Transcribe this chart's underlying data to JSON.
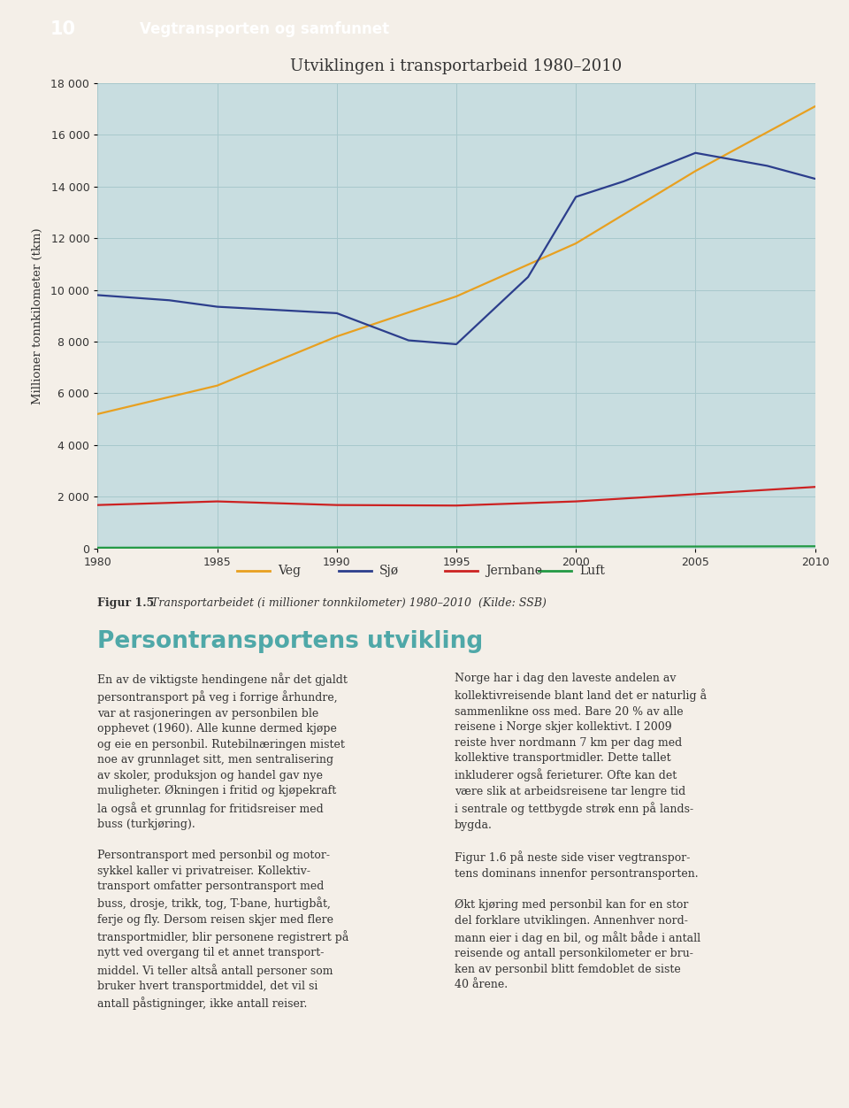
{
  "title": "Utviklingen i transportarbeid 1980–2010",
  "ylabel": "Millioner tonnkilometer (tkm)",
  "plot_bg_color": "#c8dde0",
  "page_bg_color": "#f4efe8",
  "ylim": [
    0,
    18000
  ],
  "yticks": [
    0,
    2000,
    4000,
    6000,
    8000,
    10000,
    12000,
    14000,
    16000,
    18000
  ],
  "xticks": [
    1980,
    1985,
    1990,
    1995,
    2000,
    2005,
    2010
  ],
  "header_bg": "#6fa8a0",
  "header_num_bg": "#5a8e87",
  "header_text": "Vegtransporten og samfunnet",
  "header_num": "10",
  "figcaption_bold": "Figur 1.5",
  "figcaption_italic": "  Transportarbeidet (i millioner tonnkilometer) 1980–2010  (Kilde: SSB)",
  "section_title": "Persontransportens utvikling",
  "section_title_color": "#4fa8a8",
  "lines": {
    "Veg": {
      "color": "#e8a020",
      "x": [
        1980,
        1985,
        1990,
        1995,
        2000,
        2005,
        2010
      ],
      "y": [
        5200,
        6300,
        8200,
        9750,
        11800,
        14600,
        17100
      ]
    },
    "Sjø": {
      "color": "#2c3e8c",
      "x": [
        1980,
        1983,
        1985,
        1988,
        1990,
        1992,
        1993,
        1995,
        1998,
        2000,
        2002,
        2005,
        2008,
        2010
      ],
      "y": [
        9800,
        9600,
        9350,
        9200,
        9100,
        8400,
        8050,
        7900,
        10500,
        13600,
        14200,
        15300,
        14800,
        14300
      ]
    },
    "Jernbane": {
      "color": "#cc2222",
      "x": [
        1980,
        1985,
        1990,
        1995,
        2000,
        2005,
        2010
      ],
      "y": [
        1680,
        1820,
        1680,
        1660,
        1820,
        2100,
        2380
      ]
    },
    "Luft": {
      "color": "#229944",
      "x": [
        1980,
        1985,
        1990,
        1995,
        2000,
        2005,
        2010
      ],
      "y": [
        30,
        35,
        42,
        52,
        65,
        75,
        85
      ]
    }
  },
  "legend_order": [
    "Veg",
    "Sjø",
    "Jernbane",
    "Luft"
  ],
  "grid_color": "#a8c8cc",
  "tick_label_color": "#333333",
  "title_fontsize": 13,
  "axis_label_fontsize": 9.5,
  "tick_fontsize": 9,
  "legend_fontsize": 10,
  "left_col_text": "En av de viktigste hendingene når det gjaldt\npersontransport på veg i forrige århundre,\nvar at rasjoneringen av personbilen ble\nopphevet (1960). Alle kunne dermed kjøpe\nog eie en personbil. Rutebilnæringen mistet\nnoe av grunnlaget sitt, men sentralisering\nav skoler, produksjon og handel gav nye\nmuligheter. Økningen i fritid og kjøpekraft\nla også et grunnlag for fritidsreiser med\nbuss (turkjøring).\n\nPersontransport med personbil og motor-\nsykkel kaller vi privatreiser. Kollektiv-\ntransport omfatter persontransport med\nbuss, drosje, trikk, tog, T-bane, hurtigbåt,\nferje og fly. Dersom reisen skjer med flere\ntransportmidler, blir personene registrert på\nnytt ved overgang til et annet transport-\nmiddel. Vi teller altså antall personer som\nbruker hvert transportmiddel, det vil si\nantall påstigninger, ikke antall reiser.",
  "right_col_text": "Norge har i dag den laveste andelen av\nkollektivreisende blant land det er naturlig å\nsammenlikne oss med. Bare 20 % av alle\nreisene i Norge skjer kollektivt. I 2009\nreiste hver nordmann 7 km per dag med\nkollektive transportmidler. Dette tallet\ninkluderer også ferieturer. Ofte kan det\nvære slik at arbeidsreisene tar lengre tid\ni sentrale og tettbygde strøk enn på lands-\nbygda.\n\nFigur 1.6 på neste side viser vegtranspor-\ntens dominans innenfor persontransporten.\n\nØkt kjøring med personbil kan for en stor\ndel forklare utviklingen. Annenhver nord-\nmann eier i dag en bil, og målt både i antall\nreisende og antall personkilometer er bru-\nken av personbil blitt femdoblet de siste\n40 årene."
}
